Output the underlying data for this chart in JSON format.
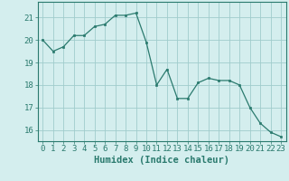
{
  "x": [
    0,
    1,
    2,
    3,
    4,
    5,
    6,
    7,
    8,
    9,
    10,
    11,
    12,
    13,
    14,
    15,
    16,
    17,
    18,
    19,
    20,
    21,
    22,
    23
  ],
  "y": [
    20.0,
    19.5,
    19.7,
    20.2,
    20.2,
    20.6,
    20.7,
    21.1,
    21.1,
    21.2,
    19.9,
    18.0,
    18.7,
    17.4,
    17.4,
    18.1,
    18.3,
    18.2,
    18.2,
    18.0,
    17.0,
    16.3,
    15.9,
    15.7
  ],
  "line_color": "#2a7a6e",
  "marker_color": "#2a7a6e",
  "bg_color": "#d4eeee",
  "grid_color": "#a0cccc",
  "xlabel": "Humidex (Indice chaleur)",
  "ylim": [
    15.5,
    21.7
  ],
  "xlim": [
    -0.5,
    23.5
  ],
  "yticks": [
    16,
    17,
    18,
    19,
    20,
    21
  ],
  "xticks": [
    0,
    1,
    2,
    3,
    4,
    5,
    6,
    7,
    8,
    9,
    10,
    11,
    12,
    13,
    14,
    15,
    16,
    17,
    18,
    19,
    20,
    21,
    22,
    23
  ],
  "tick_label_fontsize": 6.5,
  "xlabel_fontsize": 7.5
}
